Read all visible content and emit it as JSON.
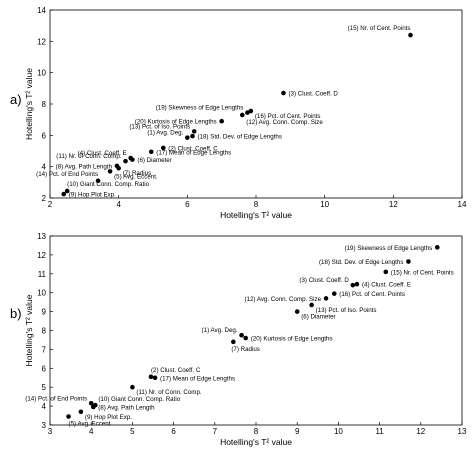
{
  "chart_data": [
    {
      "type": "scatter",
      "panel_label": "a)",
      "xlabel": "Hotelling's T² value",
      "ylabel": "Hotelling's T² value",
      "xlim": [
        2,
        14
      ],
      "ylim": [
        2,
        14
      ],
      "xticks": [
        "2",
        "4",
        "6",
        "8",
        "10",
        "12",
        "14"
      ],
      "yticks": [
        "2",
        "4",
        "6",
        "8",
        "10",
        "12",
        "14"
      ],
      "grid": false,
      "points": [
        {
          "x": 12.5,
          "y": 12.4,
          "label": "(15) Nr. of Cent. Points",
          "anchor": "end",
          "pos": "above"
        },
        {
          "x": 8.8,
          "y": 8.7,
          "label": "(3) Clust. Coeff. D",
          "anchor": "start",
          "pos": "right"
        },
        {
          "x": 7.75,
          "y": 7.45,
          "label": "(19) Skewness of Edge Lengths",
          "anchor": "end",
          "pos": "aboveleft"
        },
        {
          "x": 7.85,
          "y": 7.55,
          "label": "(16) Pct. of Cent. Points",
          "anchor": "start",
          "pos": "belowright"
        },
        {
          "x": 7.6,
          "y": 7.3,
          "label": "(12) Avg. Conn. Comp. Size",
          "anchor": "start",
          "pos": "belowright2"
        },
        {
          "x": 7.0,
          "y": 6.9,
          "label": "(20) Kurtosis of Edge Lengths",
          "anchor": "end",
          "pos": "left"
        },
        {
          "x": 6.2,
          "y": 6.25,
          "label": "(13) Pct. of Iso. Points",
          "anchor": "end",
          "pos": "aboveleft"
        },
        {
          "x": 6.0,
          "y": 5.85,
          "label": "(1) Avg. Deg.",
          "anchor": "end",
          "pos": "aboveleft"
        },
        {
          "x": 6.15,
          "y": 5.95,
          "label": "(18) Std. Dev. of Edge Lengths",
          "anchor": "start",
          "pos": "right"
        },
        {
          "x": 5.3,
          "y": 5.2,
          "label": "(2) Clust. Coeff. C",
          "anchor": "start",
          "pos": "right"
        },
        {
          "x": 4.95,
          "y": 4.95,
          "label": "(17) Mean of Edge Lengths",
          "anchor": "start",
          "pos": "right"
        },
        {
          "x": 4.35,
          "y": 4.55,
          "label": "(4) Clust. Coeff. E",
          "anchor": "end",
          "pos": "aboveleft"
        },
        {
          "x": 4.2,
          "y": 4.35,
          "label": "(11) Nr. of Conn. Comp.",
          "anchor": "end",
          "pos": "aboveleft"
        },
        {
          "x": 4.4,
          "y": 4.45,
          "label": "(6) Diameter",
          "anchor": "start",
          "pos": "right"
        },
        {
          "x": 3.95,
          "y": 4.05,
          "label": "(8) Avg. Path Length",
          "anchor": "end",
          "pos": "left"
        },
        {
          "x": 4.0,
          "y": 3.9,
          "label": "(7) Radius",
          "anchor": "start",
          "pos": "belowright"
        },
        {
          "x": 3.75,
          "y": 3.7,
          "label": "(5) Avg. Eccent.",
          "anchor": "start",
          "pos": "belowright"
        },
        {
          "x": 3.4,
          "y": 3.1,
          "label": "(14) Pct. of End Points",
          "anchor": "end",
          "pos": "above"
        },
        {
          "x": 2.5,
          "y": 2.45,
          "label": "(10) Giant Conn. Comp. Ratio",
          "anchor": "start",
          "pos": "above"
        },
        {
          "x": 2.4,
          "y": 2.25,
          "label": "(9) Hop Plot Exp.",
          "anchor": "start",
          "pos": "right"
        }
      ]
    },
    {
      "type": "scatter",
      "panel_label": "b)",
      "xlabel": "Hotelling's T² value",
      "ylabel": "Hotelling's T² value",
      "xlim": [
        3,
        13
      ],
      "ylim": [
        3,
        13
      ],
      "xticks": [
        "3",
        "4",
        "5",
        "6",
        "7",
        "8",
        "9",
        "10",
        "11",
        "12",
        "13"
      ],
      "yticks": [
        "3",
        "4",
        "5",
        "6",
        "7",
        "8",
        "9",
        "10",
        "11",
        "12",
        "13"
      ],
      "grid": false,
      "points": [
        {
          "x": 12.4,
          "y": 12.4,
          "label": "(19) Skewness of Edge Lengths",
          "anchor": "end",
          "pos": "left"
        },
        {
          "x": 11.7,
          "y": 11.65,
          "label": "(18) Std. Dev. of Edge Lengths",
          "anchor": "end",
          "pos": "left"
        },
        {
          "x": 11.15,
          "y": 11.1,
          "label": "(15) Nr. of Cent. Points",
          "anchor": "start",
          "pos": "right"
        },
        {
          "x": 10.35,
          "y": 10.4,
          "label": "(3) Clust. Coeff. D",
          "anchor": "end",
          "pos": "aboveleft"
        },
        {
          "x": 10.45,
          "y": 10.45,
          "label": "(4) Clust. Coeff. E",
          "anchor": "start",
          "pos": "right"
        },
        {
          "x": 9.7,
          "y": 9.7,
          "label": "(12) Avg. Conn. Comp. Size",
          "anchor": "end",
          "pos": "left"
        },
        {
          "x": 9.9,
          "y": 9.95,
          "label": "(16) Pct. of Cent. Points",
          "anchor": "start",
          "pos": "right"
        },
        {
          "x": 9.35,
          "y": 9.35,
          "label": "(13) Pct. of Iso. Points",
          "anchor": "start",
          "pos": "belowright"
        },
        {
          "x": 9.0,
          "y": 9.0,
          "label": "(6) Diameter",
          "anchor": "start",
          "pos": "belowright"
        },
        {
          "x": 7.65,
          "y": 7.75,
          "label": "(1) Avg. Deg.",
          "anchor": "end",
          "pos": "aboveleft"
        },
        {
          "x": 7.75,
          "y": 7.6,
          "label": "(20) Kurtosis of Edge Lengths",
          "anchor": "start",
          "pos": "right"
        },
        {
          "x": 7.45,
          "y": 7.4,
          "label": "(7) Radius",
          "anchor": "start",
          "pos": "belowleft"
        },
        {
          "x": 5.45,
          "y": 5.55,
          "label": "(2) Clust. Coeff. C",
          "anchor": "start",
          "pos": "above"
        },
        {
          "x": 5.55,
          "y": 5.5,
          "label": "(17) Mean of Edge Lengths",
          "anchor": "start",
          "pos": "right"
        },
        {
          "x": 5.0,
          "y": 5.0,
          "label": "(11) Nr. of Conn. Comp.",
          "anchor": "start",
          "pos": "belowright"
        },
        {
          "x": 4.0,
          "y": 4.15,
          "label": "(14) Pct. of End Points",
          "anchor": "end",
          "pos": "aboveleft"
        },
        {
          "x": 4.1,
          "y": 4.05,
          "label": "(10) Giant Conn. Comp. Ratio",
          "anchor": "start",
          "pos": "aboveright"
        },
        {
          "x": 4.05,
          "y": 3.95,
          "label": "(8) Avg. Path Length",
          "anchor": "start",
          "pos": "right"
        },
        {
          "x": 3.75,
          "y": 3.7,
          "label": "(9) Hop Plot Exp.",
          "anchor": "start",
          "pos": "belowright"
        },
        {
          "x": 3.45,
          "y": 3.45,
          "label": "(5) Avg. Eccent.",
          "anchor": "start",
          "pos": "below"
        }
      ]
    }
  ]
}
